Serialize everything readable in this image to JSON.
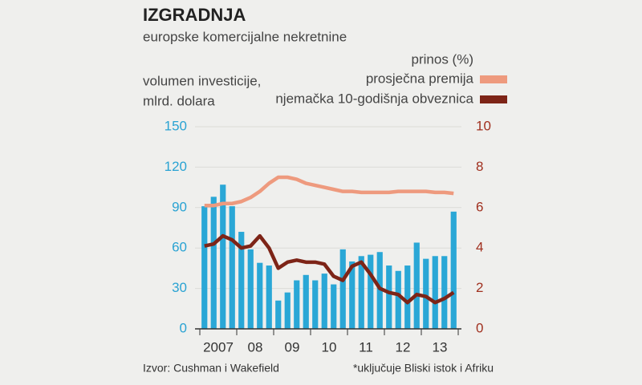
{
  "chart_data": {
    "type": "bar",
    "title": "IZGRADNJA",
    "subtitle": "europske komercijalne nekretnine",
    "ylabel": [
      "volumen investicije,",
      "mlrd. dolara"
    ],
    "y2label": "prinos (%)",
    "categories": [
      "2007",
      null,
      null,
      null,
      "08",
      null,
      null,
      null,
      "09",
      null,
      null,
      null,
      "10",
      null,
      null,
      null,
      "11",
      null,
      null,
      null,
      "12",
      null,
      null,
      null,
      "13",
      null,
      null,
      null
    ],
    "values": [
      91,
      98,
      107,
      91,
      72,
      59,
      49,
      47,
      21,
      27,
      36,
      40,
      36,
      41,
      33,
      59,
      50,
      54,
      55,
      57,
      47,
      43,
      47,
      64,
      52,
      54,
      54,
      87
    ],
    "color": "#2aa7d6",
    "series": [
      {
        "name": "prosječna premija",
        "color": "#ee9a7e",
        "axis": "y2",
        "values": [
          6.1,
          6.1,
          6.2,
          6.2,
          6.3,
          6.5,
          6.8,
          7.2,
          7.5,
          7.5,
          7.4,
          7.2,
          7.1,
          7.0,
          6.9,
          6.8,
          6.8,
          6.75,
          6.75,
          6.75,
          6.75,
          6.8,
          6.8,
          6.8,
          6.8,
          6.75,
          6.75,
          6.7
        ]
      },
      {
        "name": "njemačka 10-godišnja obveznica",
        "color": "#7d2417",
        "axis": "y2",
        "values": [
          4.1,
          4.2,
          4.6,
          4.4,
          4.0,
          4.1,
          4.6,
          4.0,
          3.0,
          3.3,
          3.4,
          3.3,
          3.3,
          3.2,
          2.6,
          2.4,
          3.1,
          3.3,
          2.7,
          2.0,
          1.8,
          1.7,
          1.3,
          1.7,
          1.6,
          1.3,
          1.5,
          1.8
        ]
      }
    ],
    "ylim": [
      0,
      150
    ],
    "yticks": [
      0,
      30,
      60,
      90,
      120,
      150
    ],
    "y2lim": [
      0,
      10
    ],
    "y2ticks": [
      0,
      2,
      4,
      6,
      8,
      10
    ],
    "source": "Izvor: Cushman i Wakefield",
    "footnote": "*uključuje Bliski istok i Afriku"
  }
}
